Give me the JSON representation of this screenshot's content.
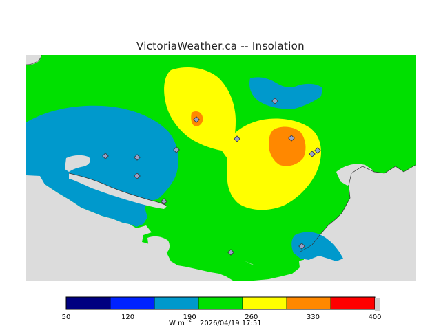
{
  "title": "VictoriaWeather.ca -- Insolation",
  "colors": {
    "land": "#00e000",
    "water": "#dcdcdc",
    "blue_zone": "#0099cc",
    "yellow_zone": "#ffff00",
    "orange_zone": "#ff8800",
    "station_fill": "#9aa0c8"
  },
  "legend": {
    "bins": [
      {
        "from": 50,
        "to": 100,
        "color": "#000080"
      },
      {
        "from": 100,
        "to": 150,
        "color": "#0022ff"
      },
      {
        "from": 150,
        "to": 200,
        "color": "#0099cc"
      },
      {
        "from": 200,
        "to": 250,
        "color": "#00e000"
      },
      {
        "from": 250,
        "to": 300,
        "color": "#ffff00"
      },
      {
        "from": 300,
        "to": 350,
        "color": "#ff8800"
      },
      {
        "from": 350,
        "to": 400,
        "color": "#ff0000"
      }
    ],
    "tick_labels": [
      "50",
      "120",
      "190",
      "260",
      "330",
      "400"
    ],
    "units_main": "W m",
    "units_sup": "-2",
    "timestamp": "2026/04/19 17:51"
  }
}
